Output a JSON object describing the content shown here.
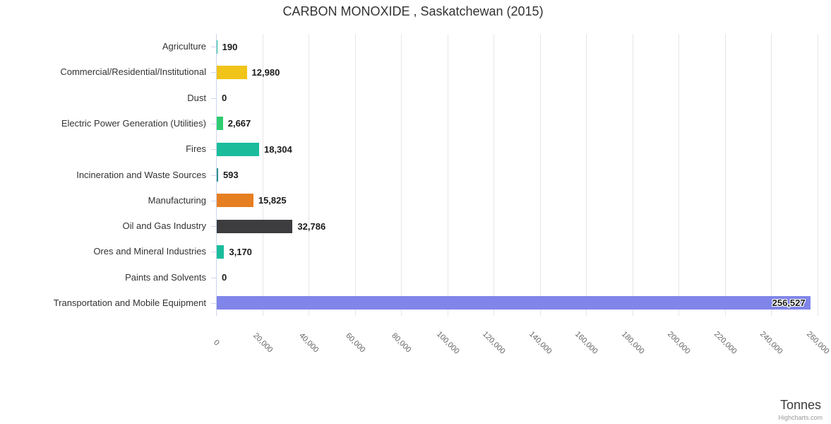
{
  "chart_data": {
    "type": "bar",
    "title": "CARBON MONOXIDE , Saskatchewan (2015)",
    "ylabel": "Tonnes",
    "categories": [
      "Agriculture",
      "Commercial/Residential/Institutional",
      "Dust",
      "Electric Power Generation (Utilities)",
      "Fires",
      "Incineration and Waste Sources",
      "Manufacturing",
      "Oil and Gas Industry",
      "Ores and Mineral Industries",
      "Paints and Solvents",
      "Transportation and Mobile Equipment"
    ],
    "values": [
      190,
      12980,
      0,
      2667,
      18304,
      593,
      15825,
      32786,
      3170,
      0,
      256527
    ],
    "value_labels": [
      "190",
      "12,980",
      "0",
      "2,667",
      "18,304",
      "593",
      "15,825",
      "32,786",
      "3,170",
      "0",
      "256,527"
    ],
    "bar_colors": [
      "#1abc9c",
      "#f0c419",
      "#1abc9c",
      "#2ecc71",
      "#1abc9c",
      "#2b908f",
      "#e67e22",
      "#3d3d40",
      "#1abc9c",
      "#1abc9c",
      "#8085e9"
    ],
    "value_axis": {
      "min": 0,
      "max": 260000,
      "tick_interval": 20000,
      "tick_labels": [
        "0",
        "20,000",
        "40,000",
        "60,000",
        "80,000",
        "100,000",
        "120,000",
        "140,000",
        "160,000",
        "180,000",
        "200,000",
        "220,000",
        "240,000",
        "260,000"
      ]
    },
    "grid": true,
    "legend": false,
    "colors": {
      "grid": "#e6e6e6",
      "axis_line": "#ccd6eb",
      "title_text": "#333333",
      "category_text": "#333333",
      "value_text": "#1a1a1a",
      "tick_text": "#666666",
      "axis_title_text": "#3a3a3a",
      "credit_text": "#999999"
    }
  },
  "credits": {
    "label": "Highcharts.com"
  }
}
